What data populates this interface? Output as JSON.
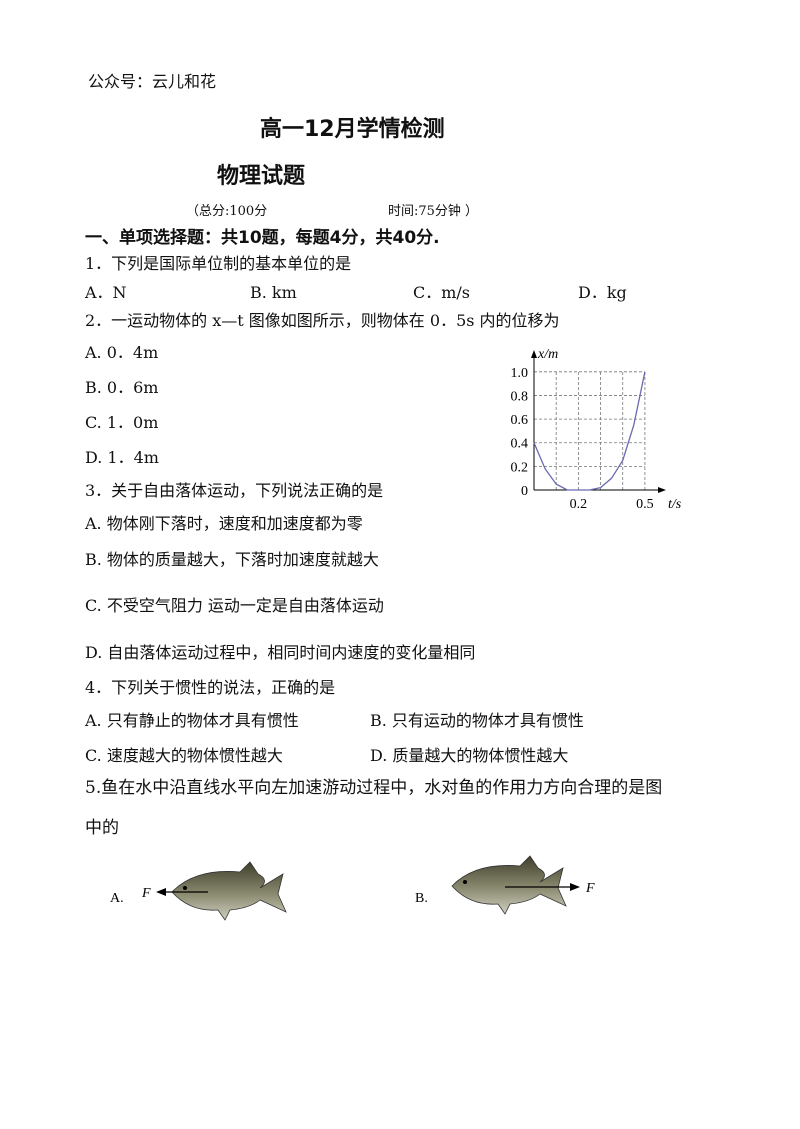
{
  "header": {
    "note": "公众号：云儿和花",
    "title": "高一12月学情检测",
    "subject": "物理试题",
    "total": "（总分:100分",
    "time": "时间:75分钟 ）"
  },
  "section": "一、单项选择题：共10题，每题4分，共40分.",
  "questions": [
    {
      "stem": "1．下列是国际单位制的基本单位的是",
      "options": [
        "A．N",
        "B. km",
        "C．m/s",
        "D．kg"
      ]
    },
    {
      "stem": "2．一运动物体的 x—t 图像如图所示，则物体在 0．5s 内的位移为",
      "options": [
        "A. 0．4m",
        "B. 0．6m",
        "C. 1．0m",
        "D. 1．4m"
      ],
      "figure": {
        "ylabel": "x/m",
        "xlabel": "t/s",
        "x": [
          0,
          0.05,
          0.1,
          0.15,
          0.2,
          0.25,
          0.3,
          0.35,
          0.4,
          0.45,
          0.5
        ],
        "values": [
          0.4,
          0.18,
          0.05,
          0,
          0,
          0,
          0.02,
          0.1,
          0.25,
          0.55,
          1.0
        ],
        "xlim": [
          0,
          0.55
        ],
        "ylim": [
          0,
          1.1
        ],
        "yticks": [
          0,
          0.2,
          0.4,
          0.6,
          0.8,
          {
            "value": 1,
            "label": "1.0"
          }
        ],
        "xticks": [
          0.2,
          0.5
        ],
        "xgrid": [
          0.1,
          0.2,
          0.3,
          0.4,
          0.5
        ],
        "grid": true
      }
    },
    {
      "stem": "3．关于自由落体运动，下列说法正确的是",
      "options": [
        "A. 物体刚下落时，速度和加速度都为零",
        "B. 物体的质量越大，下落时加速度就越大",
        "C. 不受空气阻力  运动一定是自由落体运动",
        "D. 自由落体运动过程中，相同时间内速度的变化量相同"
      ]
    },
    {
      "stem": "4．下列关于惯性的说法，正确的是",
      "options": [
        "A. 只有静止的物体才具有惯性",
        "B. 只有运动的物体才具有惯性",
        "C. 速度越大的物体惯性越大",
        "D. 质量越大的物体惯性越大"
      ]
    },
    {
      "stem": "5.鱼在水中沿直线水平向左加速游动过程中，水对鱼的作用力方向合理的是图",
      "stem2": "中的",
      "options": [
        "A.",
        "B."
      ],
      "force": [
        "F",
        "F"
      ]
    }
  ]
}
